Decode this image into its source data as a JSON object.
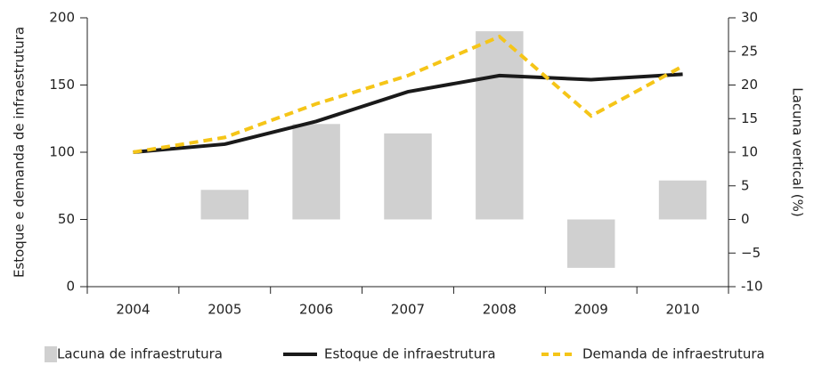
{
  "chart_data": {
    "type": "bar-line",
    "y_label": "Estoque e demanda de infraestrutura",
    "y2_label": "Lacuna vertical (%)",
    "categories": [
      "2004",
      "2005",
      "2006",
      "2007",
      "2008",
      "2009",
      "2010"
    ],
    "ylim": [
      0,
      200
    ],
    "yticks": [
      0,
      50,
      100,
      150,
      200
    ],
    "y2lim": [
      -10,
      30
    ],
    "y2ticks": [
      -10,
      {
        "value": -5,
        "label": "−5"
      },
      0,
      5,
      10,
      15,
      20,
      25,
      30
    ],
    "series": [
      {
        "name": "Lacuna de infraestrutura",
        "type": "bar",
        "axis": "y2",
        "color": "#d0d0d0",
        "values": [
          null,
          4.4,
          14.2,
          12.8,
          28,
          -7.2,
          5.8
        ]
      },
      {
        "name": "Estoque de infraestrutura",
        "type": "line",
        "color": "#1a1a1a",
        "dashed": false,
        "values": [
          100,
          106,
          123,
          145,
          157,
          154,
          158
        ]
      },
      {
        "name": "Demanda de infraestrutura",
        "type": "line",
        "color": "#f5c518",
        "dashed": true,
        "values": [
          100,
          111,
          136,
          157,
          186,
          127,
          164
        ]
      }
    ]
  }
}
